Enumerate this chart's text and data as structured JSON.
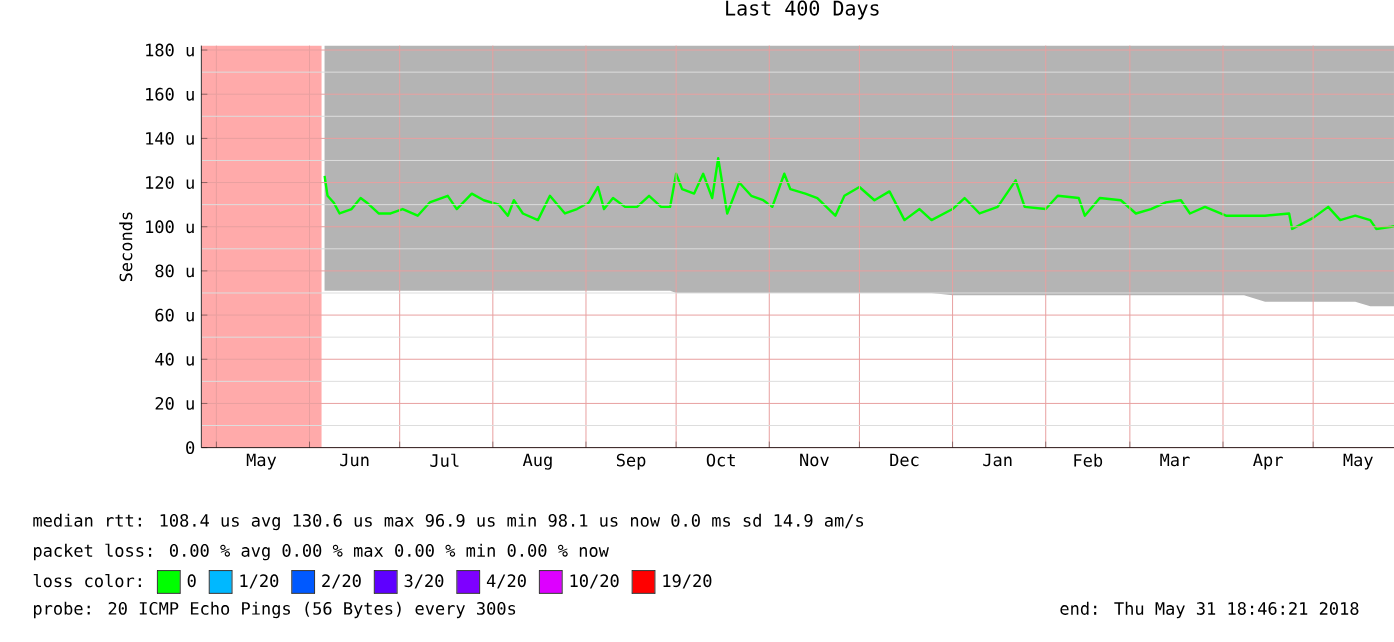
{
  "chart_data": {
    "type": "line",
    "title": "Last 400 Days",
    "ylabel": "Seconds",
    "xlim": [
      "2017-04-26",
      "2018-05-31"
    ],
    "ylim": [
      0,
      182
    ],
    "yticks": [
      {
        "value": 0,
        "label": "0"
      },
      {
        "value": 20,
        "label": "20 u"
      },
      {
        "value": 40,
        "label": "40 u"
      },
      {
        "value": 60,
        "label": "60 u"
      },
      {
        "value": 80,
        "label": "80 u"
      },
      {
        "value": 100,
        "label": "100 u"
      },
      {
        "value": 120,
        "label": "120 u"
      },
      {
        "value": 140,
        "label": "140 u"
      },
      {
        "value": 160,
        "label": "160 u"
      },
      {
        "value": 180,
        "label": "180 u"
      }
    ],
    "xticks": [
      {
        "value": "2017-05-01",
        "label": null
      },
      {
        "value": "2017-05-16",
        "label": "May"
      },
      {
        "value": "2017-06-01",
        "label": null
      },
      {
        "value": "2017-06-16",
        "label": "Jun"
      },
      {
        "value": "2017-07-01",
        "label": null
      },
      {
        "value": "2017-07-16",
        "label": "Jul"
      },
      {
        "value": "2017-08-01",
        "label": null
      },
      {
        "value": "2017-08-16",
        "label": "Aug"
      },
      {
        "value": "2017-09-01",
        "label": null
      },
      {
        "value": "2017-09-16",
        "label": "Sep"
      },
      {
        "value": "2017-10-01",
        "label": null
      },
      {
        "value": "2017-10-16",
        "label": "Oct"
      },
      {
        "value": "2017-11-01",
        "label": null
      },
      {
        "value": "2017-11-16",
        "label": "Nov"
      },
      {
        "value": "2017-12-01",
        "label": null
      },
      {
        "value": "2017-12-16",
        "label": "Dec"
      },
      {
        "value": "2018-01-01",
        "label": null
      },
      {
        "value": "2018-01-16",
        "label": "Jan"
      },
      {
        "value": "2018-02-01",
        "label": null
      },
      {
        "value": "2018-02-15",
        "label": "Feb"
      },
      {
        "value": "2018-03-01",
        "label": null
      },
      {
        "value": "2018-03-16",
        "label": "Mar"
      },
      {
        "value": "2018-04-01",
        "label": null
      },
      {
        "value": "2018-04-16",
        "label": "Apr"
      },
      {
        "value": "2018-05-01",
        "label": null
      },
      {
        "value": "2018-05-16",
        "label": "May"
      }
    ],
    "grid": true,
    "legend": "bottom",
    "legend_title": "loss color:",
    "bands": [
      {
        "axis": "x",
        "from": "2017-04-26",
        "to": "2017-06-05",
        "color": "#ffaaaa"
      }
    ],
    "series": [
      {
        "name": "0",
        "color": "#00ff00",
        "x": [
          "2017-06-06",
          "2017-06-07",
          "2017-06-09",
          "2017-06-11",
          "2017-06-15",
          "2017-06-18",
          "2017-06-20",
          "2017-06-24",
          "2017-06-28",
          "2017-07-02",
          "2017-07-07",
          "2017-07-11",
          "2017-07-17",
          "2017-07-20",
          "2017-07-25",
          "2017-07-29",
          "2017-08-03",
          "2017-08-06",
          "2017-08-08",
          "2017-08-11",
          "2017-08-16",
          "2017-08-20",
          "2017-08-25",
          "2017-08-29",
          "2017-09-02",
          "2017-09-05",
          "2017-09-07",
          "2017-09-10",
          "2017-09-14",
          "2017-09-18",
          "2017-09-22",
          "2017-09-26",
          "2017-09-29",
          "2017-10-01",
          "2017-10-03",
          "2017-10-07",
          "2017-10-10",
          "2017-10-13",
          "2017-10-15",
          "2017-10-18",
          "2017-10-22",
          "2017-10-26",
          "2017-10-30",
          "2017-11-02",
          "2017-11-06",
          "2017-11-08",
          "2017-11-13",
          "2017-11-17",
          "2017-11-23",
          "2017-11-26",
          "2017-12-01",
          "2017-12-06",
          "2017-12-11",
          "2017-12-16",
          "2017-12-21",
          "2017-12-25",
          "2018-01-01",
          "2018-01-05",
          "2018-01-10",
          "2018-01-16",
          "2018-01-22",
          "2018-01-25",
          "2018-02-01",
          "2018-02-05",
          "2018-02-12",
          "2018-02-14",
          "2018-02-19",
          "2018-02-26",
          "2018-03-03",
          "2018-03-08",
          "2018-03-13",
          "2018-03-18",
          "2018-03-21",
          "2018-03-26",
          "2018-04-02",
          "2018-04-08",
          "2018-04-15",
          "2018-04-23",
          "2018-04-24",
          "2018-05-01",
          "2018-05-06",
          "2018-05-10",
          "2018-05-15",
          "2018-05-20",
          "2018-05-22",
          "2018-05-27",
          "2018-05-31"
        ],
        "values": [
          123,
          114,
          111,
          106,
          108,
          113,
          111,
          106,
          106,
          108,
          105,
          111,
          114,
          108,
          115,
          112,
          110,
          105,
          112,
          106,
          103,
          114,
          106,
          108,
          111,
          118,
          108,
          113,
          109,
          109,
          114,
          109,
          109,
          124,
          117,
          115,
          124,
          113,
          131,
          106,
          120,
          114,
          112,
          109,
          124,
          117,
          115,
          113,
          105,
          114,
          118,
          112,
          116,
          103,
          108,
          103,
          108,
          113,
          106,
          109,
          121,
          109,
          108,
          114,
          113,
          105,
          113,
          112,
          106,
          108,
          111,
          112,
          106,
          109,
          105,
          105,
          105,
          106,
          99,
          104,
          109,
          103,
          105,
          103,
          99,
          100,
          101
        ],
        "lower": [
          71,
          71,
          71,
          71,
          71,
          71,
          71,
          71,
          71,
          71,
          71,
          71,
          71,
          71,
          71,
          71,
          71,
          71,
          71,
          71,
          71,
          71,
          71,
          71,
          71,
          71,
          71,
          71,
          71,
          71,
          71,
          71,
          71,
          70,
          70,
          70,
          70,
          70,
          70,
          70,
          70,
          70,
          70,
          70,
          70,
          70,
          70,
          70,
          70,
          70,
          70,
          70,
          70,
          70,
          70,
          70,
          69,
          69,
          69,
          69,
          69,
          69,
          69,
          69,
          69,
          69,
          69,
          69,
          69,
          69,
          69,
          69,
          69,
          69,
          69,
          69,
          66,
          66,
          66,
          66,
          66,
          66,
          66,
          64,
          64,
          64,
          64
        ],
        "upper": [
          182,
          182,
          182,
          182,
          182,
          182,
          182,
          182,
          182,
          182,
          182,
          182,
          182,
          182,
          182,
          182,
          182,
          182,
          182,
          182,
          182,
          182,
          182,
          182,
          182,
          182,
          182,
          182,
          182,
          182,
          182,
          182,
          182,
          182,
          182,
          182,
          182,
          182,
          182,
          182,
          182,
          182,
          182,
          182,
          182,
          182,
          182,
          182,
          182,
          182,
          182,
          182,
          182,
          182,
          182,
          182,
          182,
          182,
          182,
          182,
          182,
          182,
          182,
          182,
          182,
          182,
          182,
          182,
          182,
          182,
          182,
          182,
          182,
          182,
          182,
          182,
          182,
          182,
          182,
          182,
          182,
          182,
          182,
          182,
          182,
          182,
          182
        ]
      },
      {
        "name": "1/20",
        "color": "#00b8ff"
      },
      {
        "name": "2/20",
        "color": "#0059ff"
      },
      {
        "name": "3/20",
        "color": "#5e00ff"
      },
      {
        "name": "4/20",
        "color": "#7e00ff"
      },
      {
        "name": "10/20",
        "color": "#dd00ff"
      },
      {
        "name": "19/20",
        "color": "#ff0000"
      }
    ],
    "annotations": [
      "median rtt: 108.4 us avg 130.6 us max 96.9 us min 98.1 us now 0.0 ms sd 14.9 am/s",
      "packet loss: 0.00 % avg 0.00 % max 0.00 % min 0.00 % now",
      "probe: 20 ICMP Echo Pings (56 Bytes) every 300s",
      "end: Thu May 31 18:46:21 2018"
    ]
  }
}
